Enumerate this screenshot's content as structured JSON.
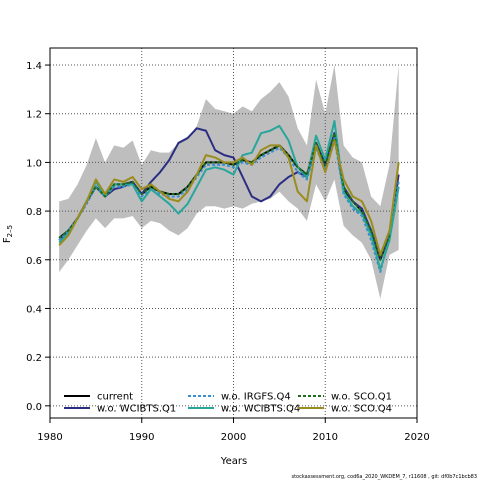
{
  "chart_data": {
    "type": "line",
    "xlabel": "Years",
    "ylabel": "F",
    "ylabel_sub": "2–5",
    "xlim": [
      1980,
      2020
    ],
    "ylim": [
      -0.05,
      1.47
    ],
    "x_ticks": [
      1980,
      1990,
      2000,
      2010,
      2020
    ],
    "y_ticks": [
      0.0,
      0.2,
      0.4,
      0.6,
      0.8,
      1.0,
      1.2,
      1.4
    ],
    "y_tick_labels": [
      "0.0",
      "0.2",
      "0.4",
      "0.6",
      "0.8",
      "1.0",
      "1.2",
      "1.4"
    ],
    "grid": true,
    "legend_placement": "bottom-left",
    "band": {
      "color": "#bebebe",
      "x": [
        1981,
        1982,
        1983,
        1984,
        1985,
        1986,
        1987,
        1988,
        1989,
        1990,
        1991,
        1992,
        1993,
        1994,
        1995,
        1996,
        1997,
        1998,
        1999,
        2000,
        2001,
        2002,
        2003,
        2004,
        2005,
        2006,
        2007,
        2008,
        2009,
        2010,
        2011,
        2012,
        2013,
        2014,
        2015,
        2016,
        2017,
        2018
      ],
      "lower": [
        0.55,
        0.6,
        0.66,
        0.72,
        0.77,
        0.73,
        0.77,
        0.77,
        0.78,
        0.73,
        0.76,
        0.75,
        0.72,
        0.7,
        0.73,
        0.79,
        0.82,
        0.82,
        0.81,
        0.82,
        0.81,
        0.83,
        0.84,
        0.85,
        0.88,
        0.84,
        0.81,
        0.76,
        0.91,
        0.84,
        0.93,
        0.74,
        0.7,
        0.67,
        0.6,
        0.44,
        0.62,
        0.64
      ],
      "upper": [
        0.84,
        0.85,
        0.91,
        0.99,
        1.1,
        1.0,
        1.07,
        1.06,
        1.09,
        0.99,
        1.05,
        1.04,
        1.04,
        1.08,
        1.1,
        1.15,
        1.26,
        1.22,
        1.21,
        1.2,
        1.23,
        1.21,
        1.26,
        1.29,
        1.33,
        1.27,
        1.14,
        1.07,
        1.34,
        1.2,
        1.4,
        1.07,
        1.02,
        1.0,
        0.86,
        0.82,
        0.99,
        1.4
      ]
    },
    "x": [
      1981,
      1982,
      1983,
      1984,
      1985,
      1986,
      1987,
      1988,
      1989,
      1990,
      1991,
      1992,
      1993,
      1994,
      1995,
      1996,
      1997,
      1998,
      1999,
      2000,
      2001,
      2002,
      2003,
      2004,
      2005,
      2006,
      2007,
      2008,
      2009,
      2010,
      2011,
      2012,
      2013,
      2014,
      2015,
      2016,
      2017,
      2018
    ],
    "series": [
      {
        "name": "current",
        "color": "#000000",
        "dash": "solid",
        "values": [
          0.69,
          0.72,
          0.77,
          0.84,
          0.9,
          0.86,
          0.91,
          0.91,
          0.92,
          0.87,
          0.9,
          0.88,
          0.87,
          0.87,
          0.9,
          0.95,
          1.0,
          1.0,
          1.0,
          0.99,
          1.01,
          1.0,
          1.03,
          1.05,
          1.07,
          1.03,
          0.98,
          0.95,
          1.08,
          0.99,
          1.12,
          0.89,
          0.84,
          0.8,
          0.72,
          0.6,
          0.7,
          null
        ]
      },
      {
        "name": "w.o. WCIBTS.Q1",
        "color": "#2b2d82",
        "dash": "solid",
        "values": [
          0.68,
          0.72,
          0.77,
          0.84,
          0.9,
          0.86,
          0.89,
          0.9,
          0.92,
          0.87,
          0.92,
          0.96,
          1.01,
          1.08,
          1.1,
          1.14,
          1.13,
          1.05,
          1.03,
          1.02,
          0.94,
          0.86,
          0.84,
          0.86,
          0.91,
          0.94,
          0.96,
          0.94,
          1.08,
          0.98,
          1.12,
          0.9,
          0.84,
          0.81,
          0.72,
          0.61,
          0.7,
          0.95
        ]
      },
      {
        "name": "w.o. IRGFS.Q4",
        "color": "#3a8fd0",
        "dash": "dashed",
        "values": [
          0.68,
          0.72,
          0.77,
          0.83,
          0.9,
          0.86,
          0.9,
          0.9,
          0.91,
          0.86,
          0.89,
          0.87,
          0.86,
          0.86,
          0.89,
          0.94,
          0.99,
          0.99,
          0.99,
          0.98,
          1.0,
          0.99,
          1.02,
          1.04,
          1.06,
          1.02,
          0.96,
          0.93,
          1.06,
          0.97,
          1.1,
          0.87,
          0.81,
          0.78,
          0.68,
          0.55,
          0.7,
          0.92
        ]
      },
      {
        "name": "w.o. WCIBTS.Q4",
        "color": "#27a69c",
        "dash": "solid",
        "values": [
          0.67,
          0.71,
          0.77,
          0.84,
          0.92,
          0.86,
          0.91,
          0.91,
          0.91,
          0.84,
          0.89,
          0.86,
          0.83,
          0.79,
          0.83,
          0.9,
          0.97,
          0.98,
          0.97,
          0.95,
          1.03,
          1.04,
          1.12,
          1.13,
          1.15,
          1.09,
          0.98,
          0.94,
          1.11,
          1.01,
          1.17,
          0.88,
          0.82,
          0.79,
          0.7,
          0.56,
          0.68,
          0.9
        ]
      },
      {
        "name": "w.o. SCO.Q1",
        "color": "#1f6b1f",
        "dash": "dashed",
        "values": [
          0.69,
          0.72,
          0.77,
          0.84,
          0.9,
          0.86,
          0.91,
          0.91,
          0.92,
          0.87,
          0.9,
          0.88,
          0.87,
          0.87,
          0.9,
          0.95,
          1.0,
          1.0,
          1.0,
          0.99,
          1.01,
          1.0,
          1.03,
          1.05,
          1.07,
          1.03,
          0.98,
          0.95,
          1.08,
          0.99,
          1.12,
          0.9,
          0.84,
          0.8,
          0.72,
          0.6,
          0.7,
          null
        ]
      },
      {
        "name": "w.o. SCO.Q4",
        "color": "#9b8c1e",
        "dash": "solid",
        "values": [
          0.66,
          0.7,
          0.77,
          0.84,
          0.93,
          0.87,
          0.93,
          0.92,
          0.94,
          0.89,
          0.91,
          0.88,
          0.85,
          0.84,
          0.88,
          0.95,
          1.03,
          1.02,
          1.0,
          1.0,
          1.02,
          0.99,
          1.05,
          1.07,
          1.07,
          1.02,
          0.88,
          0.84,
          1.07,
          0.96,
          1.09,
          0.93,
          0.86,
          0.84,
          0.76,
          0.62,
          0.72,
          1.0
        ]
      }
    ]
  },
  "legend": {
    "items": [
      {
        "label": "current",
        "color": "#000000",
        "dash": "solid"
      },
      {
        "label": "w.o. WCIBTS.Q1",
        "color": "#2b2d82",
        "dash": "solid"
      },
      {
        "label": "w.o. IRGFS.Q4",
        "color": "#3a8fd0",
        "dash": "dashed"
      },
      {
        "label": "w.o. WCIBTS.Q4",
        "color": "#27a69c",
        "dash": "solid"
      },
      {
        "label": "w.o. SCO.Q1",
        "color": "#1f6b1f",
        "dash": "dashed"
      },
      {
        "label": "w.o. SCO.Q4",
        "color": "#9b8c1e",
        "dash": "solid"
      }
    ]
  },
  "footer": "stockassessment.org,  cod6a_2020_WKDEM_7,  r11608 ,  git:  df0b7c1bcb83"
}
